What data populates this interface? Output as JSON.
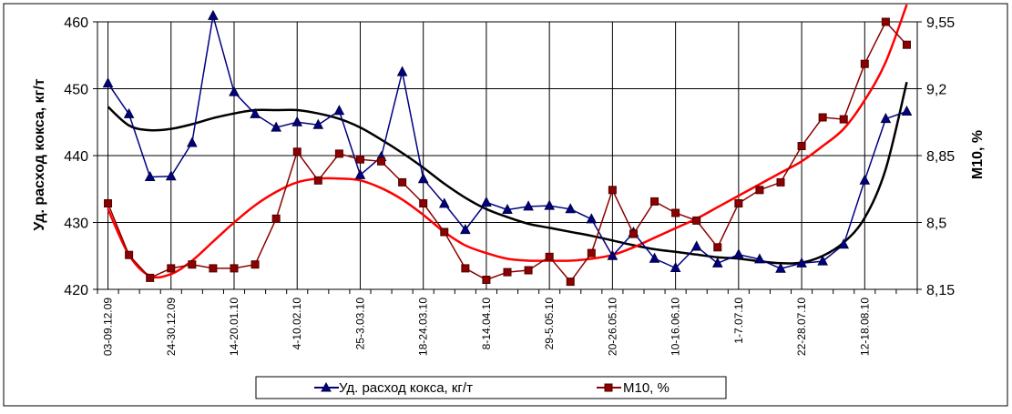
{
  "chart_data": {
    "type": "line",
    "x": [
      "03-09.12.09",
      "",
      "",
      "24-30.12.09",
      "",
      "",
      "14-20.01.10",
      "",
      "",
      "4-10.02.10",
      "",
      "",
      "25-3.03.10",
      "",
      "",
      "18-24.03.10",
      "",
      "",
      "8-14.04.10",
      "",
      "",
      "29-5.05.10",
      "",
      "",
      "20-26.05.10",
      "",
      "",
      "10-16.06.10",
      "",
      "",
      "1-7.07.10",
      "",
      "",
      "22-28.07.10",
      "",
      "",
      "12-18.08.10",
      "",
      ""
    ],
    "y_left_label": "Уд. расход кокса, кг/т",
    "y_right_label": "М10, %",
    "y_left_lim": [
      420,
      460
    ],
    "y_left_ticks": [
      420,
      430,
      440,
      450,
      460
    ],
    "y_right_lim": [
      8.15,
      9.55
    ],
    "y_right_ticks": [
      "8,15",
      "8,5",
      "8,85",
      "9,2",
      "9,55"
    ],
    "y_right_tick_values": [
      8.15,
      8.5,
      8.85,
      9.2,
      9.55
    ],
    "grid": true,
    "legend_position": "bottom",
    "series": [
      {
        "name": "Уд. расход кокса, кг/т",
        "axis": "left",
        "color": "#000080",
        "marker": "triangle",
        "values": [
          450.8,
          446.2,
          436.8,
          436.9,
          441.9,
          460.9,
          449.5,
          446.2,
          444.2,
          445.0,
          444.6,
          446.7,
          437.1,
          439.8,
          452.5,
          436.5,
          432.8,
          428.9,
          433.0,
          431.9,
          432.4,
          432.5,
          432.0,
          430.5,
          425.0,
          428.5,
          424.6,
          423.2,
          426.4,
          423.9,
          425.2,
          424.5,
          423.1,
          423.9,
          424.2,
          426.7,
          436.3,
          445.5,
          446.6
        ]
      },
      {
        "name": "М10, %",
        "axis": "right",
        "color": "#8b0000",
        "marker": "square",
        "values": [
          8.6,
          8.33,
          8.21,
          8.26,
          8.28,
          8.26,
          8.26,
          8.28,
          8.52,
          8.87,
          8.72,
          8.86,
          8.83,
          8.82,
          8.71,
          8.6,
          8.45,
          8.26,
          8.2,
          8.24,
          8.25,
          8.32,
          8.19,
          8.34,
          8.67,
          8.44,
          8.61,
          8.55,
          8.51,
          8.37,
          8.6,
          8.67,
          8.71,
          8.9,
          9.05,
          9.04,
          9.33,
          9.55,
          9.43
        ]
      }
    ],
    "trendlines": [
      {
        "series": "Уд. расход кокса, кг/т",
        "color": "#000000",
        "values": [
          447.3,
          444.5,
          443.8,
          444.0,
          444.7,
          445.6,
          446.3,
          446.8,
          446.8,
          446.8,
          446.3,
          445.5,
          444.2,
          442.4,
          440.4,
          438.2,
          435.8,
          433.7,
          432.0,
          430.8,
          429.8,
          429.2,
          428.6,
          428.0,
          427.3,
          426.6,
          426.0,
          425.6,
          425.2,
          424.8,
          424.6,
          424.2,
          423.9,
          424.0,
          425.0,
          427.0,
          430.7,
          438.0,
          451.0
        ]
      },
      {
        "series": "М10, %",
        "color": "#ff0000",
        "values": [
          8.57,
          8.33,
          8.22,
          8.23,
          8.3,
          8.4,
          8.5,
          8.59,
          8.66,
          8.71,
          8.73,
          8.73,
          8.72,
          8.68,
          8.62,
          8.54,
          8.45,
          8.38,
          8.34,
          8.31,
          8.3,
          8.3,
          8.3,
          8.31,
          8.33,
          8.37,
          8.42,
          8.47,
          8.52,
          8.58,
          8.64,
          8.7,
          8.76,
          8.82,
          8.9,
          8.99,
          9.14,
          9.34,
          9.64
        ]
      }
    ]
  }
}
